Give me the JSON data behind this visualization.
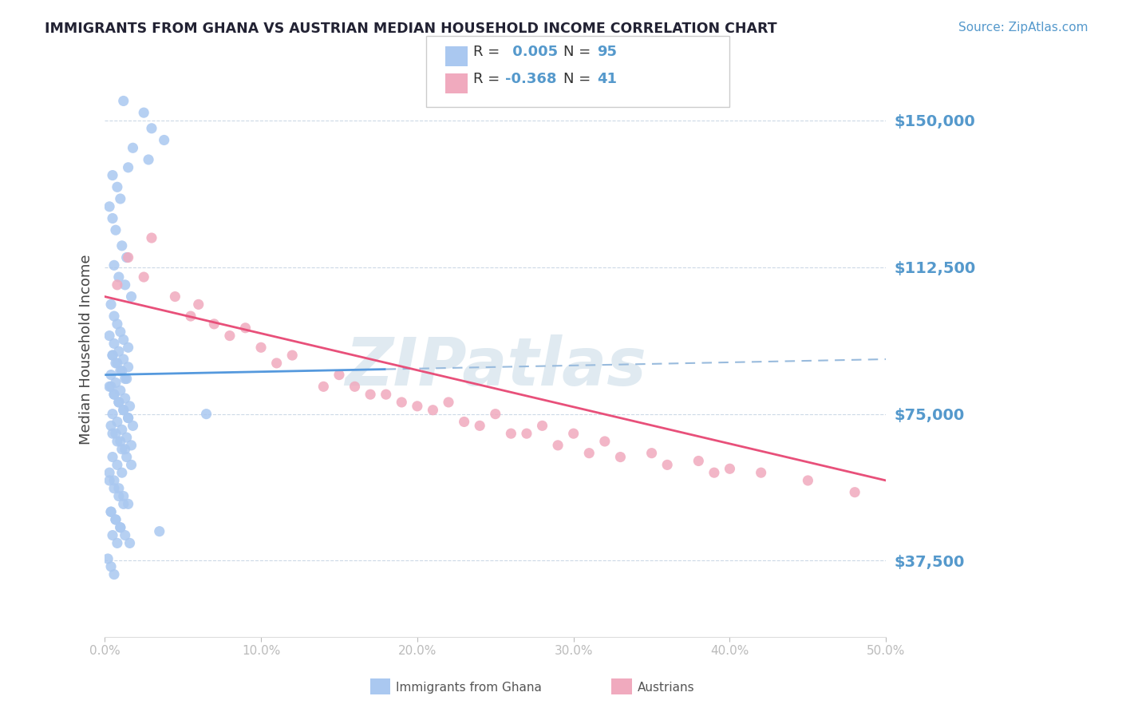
{
  "title": "IMMIGRANTS FROM GHANA VS AUSTRIAN MEDIAN HOUSEHOLD INCOME CORRELATION CHART",
  "source": "Source: ZipAtlas.com",
  "ylabel": "Median Household Income",
  "yticks": [
    37500,
    75000,
    112500,
    150000
  ],
  "ytick_labels": [
    "$37,500",
    "$75,000",
    "$112,500",
    "$150,000"
  ],
  "xlim": [
    0.0,
    50.0
  ],
  "ylim": [
    18000,
    165000
  ],
  "blue_color": "#aac8f0",
  "pink_color": "#f0aabe",
  "blue_line_color": "#5599dd",
  "blue_line_dashed_color": "#99bbdd",
  "pink_line_color": "#e8507a",
  "title_color": "#222233",
  "axis_label_color": "#5599cc",
  "watermark_color": "#ccdde8",
  "blue_R": 0.005,
  "blue_N": 95,
  "pink_R": -0.368,
  "pink_N": 41,
  "blue_scatter_x": [
    1.2,
    2.5,
    3.0,
    3.8,
    1.8,
    2.8,
    1.5,
    0.5,
    0.8,
    1.0,
    0.3,
    0.5,
    0.7,
    1.1,
    1.4,
    0.6,
    0.9,
    1.3,
    1.7,
    0.4,
    0.6,
    0.8,
    1.0,
    1.2,
    1.5,
    0.5,
    0.7,
    1.0,
    1.3,
    0.4,
    0.6,
    0.9,
    1.2,
    1.5,
    1.8,
    0.5,
    0.8,
    1.1,
    1.4,
    1.7,
    0.3,
    0.6,
    0.9,
    1.2,
    1.5,
    0.4,
    0.7,
    1.0,
    1.3,
    1.6,
    0.5,
    0.8,
    1.1,
    1.4,
    0.3,
    0.6,
    0.9,
    1.2,
    1.5,
    0.4,
    0.7,
    1.0,
    1.3,
    0.5,
    0.8,
    1.1,
    0.3,
    0.6,
    0.9,
    1.2,
    0.4,
    0.7,
    1.0,
    0.5,
    0.8,
    0.3,
    0.6,
    0.9,
    1.2,
    1.5,
    0.4,
    0.7,
    1.0,
    1.3,
    1.6,
    0.5,
    0.8,
    1.1,
    1.4,
    1.7,
    3.5,
    0.2,
    0.4,
    0.6,
    6.5
  ],
  "blue_scatter_y": [
    155000,
    152000,
    148000,
    145000,
    143000,
    140000,
    138000,
    136000,
    133000,
    130000,
    128000,
    125000,
    122000,
    118000,
    115000,
    113000,
    110000,
    108000,
    105000,
    103000,
    100000,
    98000,
    96000,
    94000,
    92000,
    90000,
    88000,
    86000,
    84000,
    82000,
    80000,
    78000,
    76000,
    74000,
    72000,
    70000,
    68000,
    66000,
    64000,
    62000,
    60000,
    58000,
    56000,
    54000,
    52000,
    50000,
    48000,
    46000,
    44000,
    42000,
    90000,
    88000,
    86000,
    84000,
    82000,
    80000,
    78000,
    76000,
    74000,
    72000,
    70000,
    68000,
    66000,
    64000,
    62000,
    60000,
    58000,
    56000,
    54000,
    52000,
    50000,
    48000,
    46000,
    44000,
    42000,
    95000,
    93000,
    91000,
    89000,
    87000,
    85000,
    83000,
    81000,
    79000,
    77000,
    75000,
    73000,
    71000,
    69000,
    67000,
    45000,
    38000,
    36000,
    34000,
    75000
  ],
  "pink_scatter_x": [
    0.8,
    1.5,
    3.0,
    5.5,
    8.0,
    2.5,
    4.5,
    7.0,
    10.0,
    6.0,
    12.0,
    15.0,
    9.0,
    18.0,
    11.0,
    22.0,
    25.0,
    14.0,
    28.0,
    17.0,
    30.0,
    20.0,
    32.0,
    35.0,
    23.0,
    38.0,
    26.0,
    40.0,
    29.0,
    42.0,
    33.0,
    45.0,
    36.0,
    48.0,
    39.0,
    16.0,
    19.0,
    21.0,
    24.0,
    27.0,
    31.0
  ],
  "pink_scatter_y": [
    108000,
    115000,
    120000,
    100000,
    95000,
    110000,
    105000,
    98000,
    92000,
    103000,
    90000,
    85000,
    97000,
    80000,
    88000,
    78000,
    75000,
    82000,
    72000,
    80000,
    70000,
    77000,
    68000,
    65000,
    73000,
    63000,
    70000,
    61000,
    67000,
    60000,
    64000,
    58000,
    62000,
    55000,
    60000,
    82000,
    78000,
    76000,
    72000,
    70000,
    65000
  ]
}
